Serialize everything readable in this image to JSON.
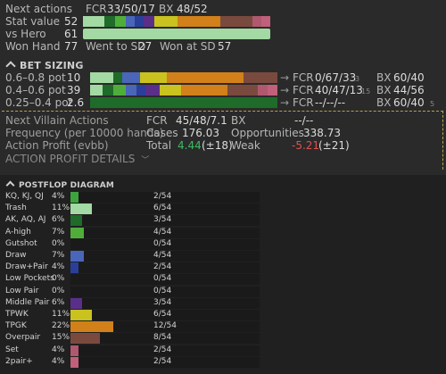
{
  "top": {
    "next_actions_label": "Next actions",
    "next_fcr_label": "FCR",
    "next_fcr": "33/50/17",
    "next_bx_label": "BX",
    "next_bx": "48/52",
    "stat_value_label": "Stat value",
    "stat_value": "52",
    "vs_hero_label": "vs Hero",
    "vs_hero": "61",
    "won_hand_label": "Won Hand",
    "won_hand": "77",
    "went_sd_label": "Went to SD",
    "went_sd": "27",
    "won_sd_label": "Won at SD",
    "won_sd": "57"
  },
  "bet_sizing": {
    "title": "BET SIZING",
    "rows": [
      {
        "label": "0.6–0.8 pot",
        "count": "10",
        "fcr_label": "FCR",
        "fcr": "0/67/33",
        "fcr_sub": "3",
        "bx_label": "BX",
        "bx": "60/40"
      },
      {
        "label": "0.4–0.6 pot",
        "count": "39",
        "fcr_label": "FCR",
        "fcr": "40/47/13",
        "fcr_sub": "15",
        "bx_label": "BX",
        "bx": "44/56"
      },
      {
        "label": "0.25–0.4 pot",
        "count": "2.6",
        "fcr_label": "FCR",
        "fcr": "--/--/--",
        "fcr_sub": "",
        "bx_label": "BX",
        "bx": "60/40",
        "bx_sub": "5"
      }
    ]
  },
  "villain": {
    "next_villain_label": "Next Villain Actions",
    "fcr_label": "FCR",
    "fcr_value": "45/48/7.1",
    "bx_label": "BX",
    "bx_value": "--/--",
    "freq_label": "Frequency (per 10000 hands)",
    "cases_label": "Cases",
    "cases_value": "176.03",
    "opp_label": "Opportunities",
    "opp_value": "338.73",
    "profit_label": "Action Profit (evbb)",
    "total_label": "Total",
    "total_value": "4.44",
    "total_ci": "(±18)",
    "weak_label": "Weak",
    "weak_value": "-5.21",
    "weak_ci": "(±21)",
    "details_label": "ACTION PROFIT DETAILS"
  },
  "postflop": {
    "title": "POSTFLOP DIAGRAM",
    "rows": [
      {
        "label": "KQ, KJ, QJ",
        "pct": "4%",
        "count": "2/54",
        "frac": 0.04,
        "color": "#3ea33e"
      },
      {
        "label": "Trash",
        "pct": "11%",
        "count": "6/54",
        "frac": 0.11,
        "color": "#a3d9a3"
      },
      {
        "label": "AK, AQ, AJ",
        "pct": "6%",
        "count": "3/54",
        "frac": 0.06,
        "color": "#1f6b2a"
      },
      {
        "label": "A-high",
        "pct": "7%",
        "count": "4/54",
        "frac": 0.07,
        "color": "#4fae3a"
      },
      {
        "label": "Gutshot",
        "pct": "0%",
        "count": "0/54",
        "frac": 0,
        "color": "#4fae3a"
      },
      {
        "label": "Draw",
        "pct": "7%",
        "count": "4/54",
        "frac": 0.07,
        "color": "#4a66b8"
      },
      {
        "label": "Draw+Pair",
        "pct": "4%",
        "count": "2/54",
        "frac": 0.04,
        "color": "#2a3f9a"
      },
      {
        "label": "Low Pockets",
        "pct": "0%",
        "count": "0/54",
        "frac": 0,
        "color": "#4fae3a"
      },
      {
        "label": "Low Pair",
        "pct": "0%",
        "count": "0/54",
        "frac": 0,
        "color": "#4fae3a"
      },
      {
        "label": "Middle Pair",
        "pct": "6%",
        "count": "3/54",
        "frac": 0.06,
        "color": "#5a2f8a"
      },
      {
        "label": "TPWK",
        "pct": "11%",
        "count": "6/54",
        "frac": 0.11,
        "color": "#c9c21f"
      },
      {
        "label": "TPGK",
        "pct": "22%",
        "count": "12/54",
        "frac": 0.22,
        "color": "#d2801a"
      },
      {
        "label": "Overpair",
        "pct": "15%",
        "count": "8/54",
        "frac": 0.15,
        "color": "#7a4a3f"
      },
      {
        "label": "Set",
        "pct": "4%",
        "count": "2/54",
        "frac": 0.04,
        "color": "#b0586e"
      },
      {
        "label": "2pair+",
        "pct": "4%",
        "count": "2/54",
        "frac": 0.04,
        "color": "#c0607a"
      }
    ]
  },
  "colors": {
    "bg": "#2a2a2a",
    "track": "#1a1a1a",
    "light_green": "#a3d9a3",
    "dark_green": "#1f6b2a",
    "profit_positive": "#3dbb62",
    "profit_negative": "#e05050"
  }
}
